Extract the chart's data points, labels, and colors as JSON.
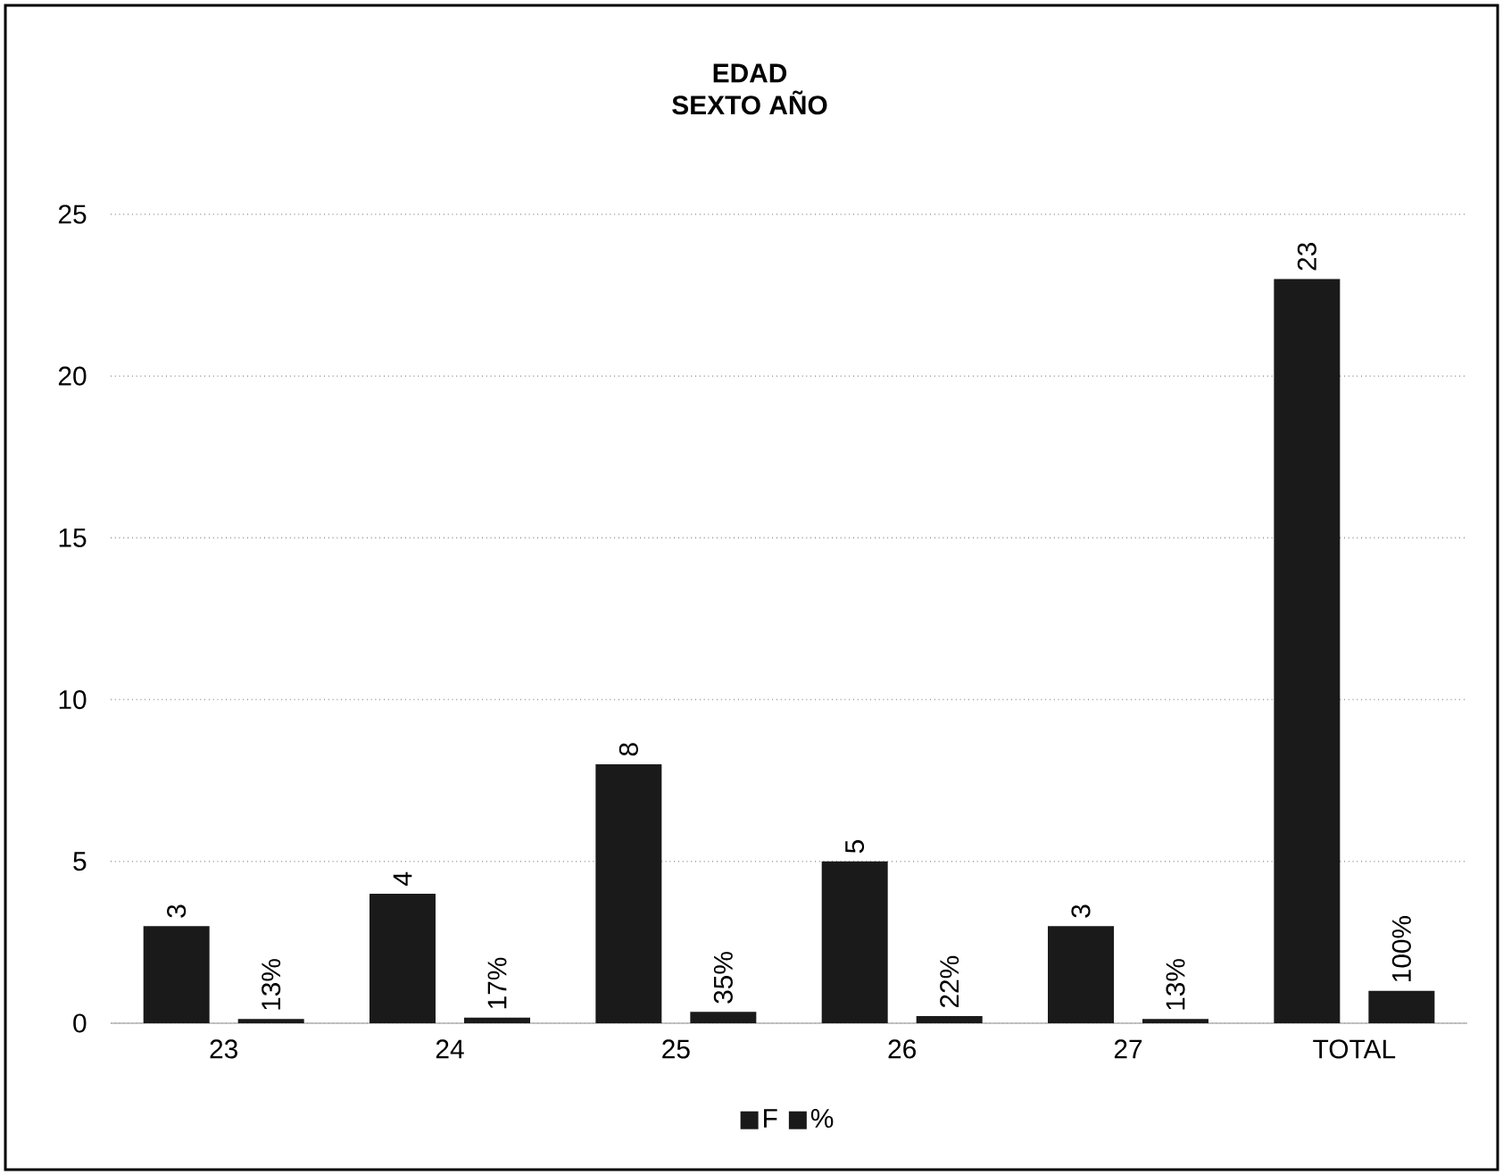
{
  "chart_data": {
    "type": "bar",
    "title": "EDAD",
    "subtitle": "SEXTO AÑO",
    "categories": [
      "23",
      "24",
      "25",
      "26",
      "27",
      "TOTAL"
    ],
    "series": [
      {
        "name": "F",
        "color": "#1a1a1a",
        "values": [
          3,
          4,
          8,
          5,
          3,
          23
        ],
        "value_labels": [
          "3",
          "4",
          "8",
          "5",
          "3",
          "23"
        ]
      },
      {
        "name": "%",
        "color": "#1a1a1a",
        "values": [
          0.13,
          0.17,
          0.35,
          0.22,
          0.13,
          1
        ],
        "value_labels": [
          "13%",
          "17%",
          "35%",
          "22%",
          "13%",
          "100%"
        ]
      }
    ],
    "ylim": [
      0,
      25
    ],
    "yticks": [
      0,
      5,
      10,
      15,
      20,
      25
    ],
    "grid": "y",
    "legend": "bottom"
  }
}
